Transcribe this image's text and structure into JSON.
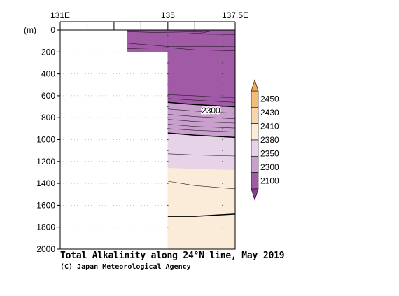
{
  "chart_data": {
    "type": "heatmap",
    "title": "Total Alkalinity along 24°N line, May 2019",
    "credit": "(C) Japan Meteorological Agency",
    "xaxis": {
      "ticks": [
        131,
        132,
        133,
        134,
        135,
        136,
        137.5
      ],
      "tick_labels": [
        {
          "value": 131,
          "label": "131E"
        },
        {
          "value": 135,
          "label": "135"
        },
        {
          "value": 137.5,
          "label": "137.5E"
        }
      ],
      "range": [
        131,
        137.5
      ]
    },
    "yaxis": {
      "unit_label": "(m)",
      "range": [
        0,
        2000
      ],
      "reversed": true,
      "ticks": [
        0,
        200,
        400,
        600,
        800,
        1000,
        1200,
        1400,
        1600,
        1800,
        2000
      ],
      "tick_labels": [
        "0",
        "200",
        "400",
        "600",
        "800",
        "1000",
        "1200",
        "1400",
        "1600",
        "1800",
        "2000"
      ]
    },
    "contour_labels": [
      {
        "text": "2300",
        "x": 136.6,
        "y": 760
      }
    ],
    "legend": {
      "placement": "right",
      "levels": [
        "2100",
        "2300",
        "2350",
        "2380",
        "2410",
        "2430",
        "2450"
      ],
      "colors": [
        "#a15aa6",
        "#c9a0cc",
        "#e7d3e7",
        "#faecd8",
        "#f6d7ad",
        "#f0be77"
      ],
      "under_color": "#8a3d91",
      "over_color": "#eeaa55"
    },
    "no_data_region": {
      "x": [
        131,
        135
      ],
      "y": [
        200,
        2000
      ],
      "x_shallow": [
        131,
        133.5
      ],
      "y_shallow": [
        0,
        200
      ]
    },
    "bands": [
      {
        "color": "#a15aa6",
        "top": [
          [
            133.5,
            0
          ],
          [
            137.5,
            0
          ]
        ],
        "bottom": [
          [
            133.5,
            200
          ],
          [
            135,
            200
          ],
          [
            135,
            660
          ],
          [
            136,
            680
          ],
          [
            137.5,
            700
          ]
        ]
      },
      {
        "color": "#c9a0cc",
        "top": [
          [
            135,
            660
          ],
          [
            136,
            680
          ],
          [
            137.5,
            700
          ]
        ],
        "bottom": [
          [
            135,
            940
          ],
          [
            136,
            960
          ],
          [
            137.5,
            980
          ]
        ]
      },
      {
        "color": "#e7d3e7",
        "top": [
          [
            135,
            940
          ],
          [
            136,
            960
          ],
          [
            137.5,
            980
          ]
        ],
        "bottom": [
          [
            135,
            1260
          ],
          [
            136,
            1270
          ],
          [
            137.5,
            1280
          ]
        ]
      },
      {
        "color": "#faecd8",
        "top": [
          [
            135,
            1260
          ],
          [
            136,
            1270
          ],
          [
            137.5,
            1280
          ]
        ],
        "bottom": [
          [
            135,
            2000
          ],
          [
            137.5,
            2000
          ]
        ]
      }
    ],
    "thin_contours": [
      [
        [
          133.5,
          120
        ],
        [
          134.5,
          140
        ],
        [
          135,
          150
        ],
        [
          136.2,
          148
        ],
        [
          137.5,
          150
        ]
      ],
      [
        [
          133.5,
          170
        ],
        [
          135,
          160
        ],
        [
          136,
          180
        ],
        [
          137.5,
          190
        ]
      ],
      [
        [
          135,
          590
        ],
        [
          136,
          600
        ],
        [
          137.5,
          620
        ]
      ],
      [
        [
          135,
          625
        ],
        [
          136,
          640
        ],
        [
          137.5,
          660
        ]
      ],
      [
        [
          135,
          720
        ],
        [
          136,
          740
        ],
        [
          137.5,
          760
        ]
      ],
      [
        [
          135,
          770
        ],
        [
          136,
          790
        ],
        [
          137.5,
          810
        ]
      ],
      [
        [
          135,
          815
        ],
        [
          136,
          835
        ],
        [
          137.5,
          850
        ]
      ],
      [
        [
          135,
          860
        ],
        [
          136,
          880
        ],
        [
          137.5,
          895
        ]
      ],
      [
        [
          135,
          900
        ],
        [
          136,
          915
        ],
        [
          137.5,
          930
        ]
      ],
      [
        [
          135,
          1130
        ],
        [
          136,
          1140
        ],
        [
          137.5,
          1150
        ]
      ],
      [
        [
          135,
          1380
        ],
        [
          136,
          1420
        ],
        [
          137.5,
          1450
        ]
      ]
    ],
    "thick_contours": [
      [
        [
          135,
          660
        ],
        [
          136,
          680
        ],
        [
          137.5,
          700
        ]
      ],
      [
        [
          135,
          940
        ],
        [
          136,
          960
        ],
        [
          137.5,
          980
        ]
      ],
      [
        [
          135,
          1700
        ],
        [
          136,
          1700
        ],
        [
          137.5,
          1680
        ]
      ]
    ],
    "wiggle_contour": [
      [
        133.5,
        15
      ],
      [
        134.5,
        22
      ],
      [
        135.2,
        20
      ],
      [
        136.2,
        15
      ],
      [
        136.6,
        10
      ],
      [
        136.3,
        25
      ],
      [
        135.6,
        35
      ],
      [
        137.5,
        40
      ]
    ],
    "station_columns": [
      135,
      137.5
    ],
    "station_depths": [
      50,
      100,
      150,
      200,
      300,
      400,
      500,
      600,
      700,
      800,
      900,
      1000,
      1100,
      1200,
      1400,
      1600,
      1800
    ]
  }
}
